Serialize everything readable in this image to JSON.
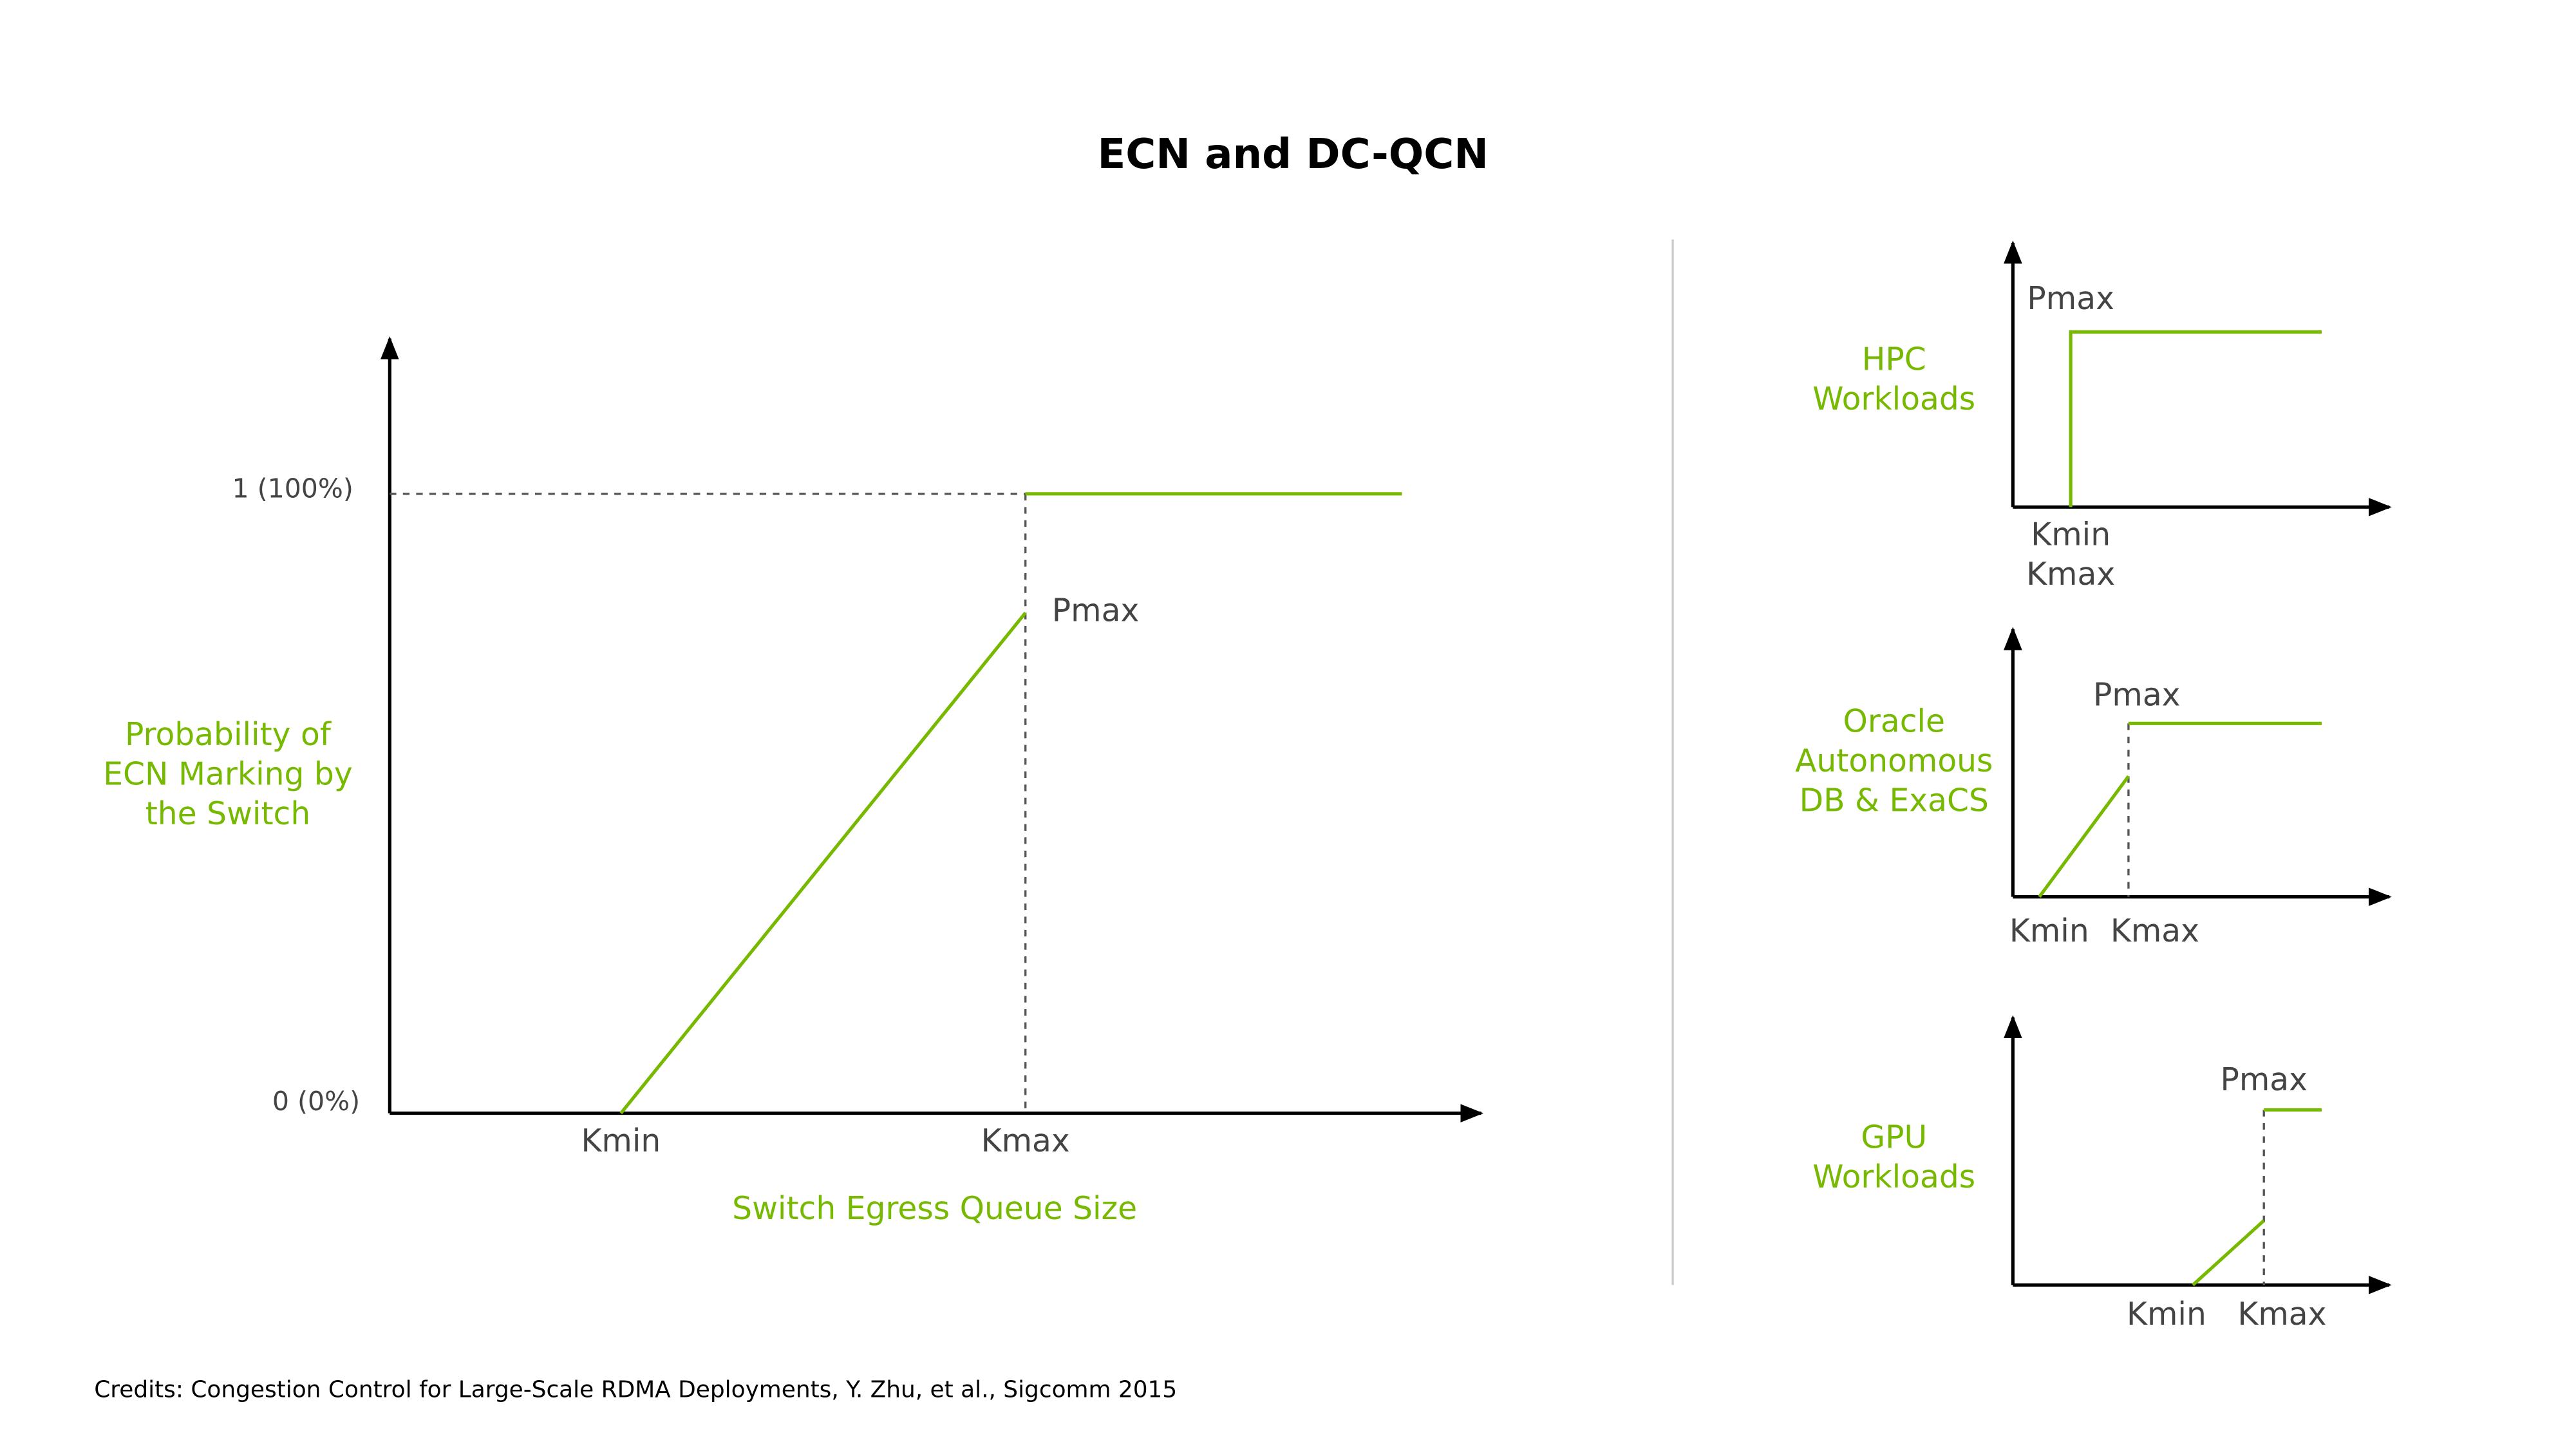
{
  "title": "ECN and DC-QCN",
  "main": {
    "y_axis_label": [
      "Probability of",
      "ECN Marking by",
      "the Switch"
    ],
    "y_top": "1 (100%)",
    "y_bottom": "0 (0%)",
    "pmax": "Pmax",
    "kmin": "Kmin",
    "kmax": "Kmax",
    "x_axis_label": "Switch Egress Queue Size"
  },
  "panels": [
    {
      "label": [
        "HPC",
        "Workloads"
      ],
      "pmax": "Pmax",
      "kmin": "Kmin",
      "kmax": "Kmax"
    },
    {
      "label": [
        "Oracle",
        "Autonomous",
        "DB & ExaCS"
      ],
      "pmax": "Pmax",
      "kmin": "Kmin",
      "kmax": "Kmax"
    },
    {
      "label": [
        "GPU",
        "Workloads"
      ],
      "pmax": "Pmax",
      "kmin": "Kmin",
      "kmax": "Kmax"
    }
  ],
  "credits": "Credits: Congestion Control for Large-Scale RDMA Deployments, Y. Zhu, et al., Sigcomm 2015"
}
